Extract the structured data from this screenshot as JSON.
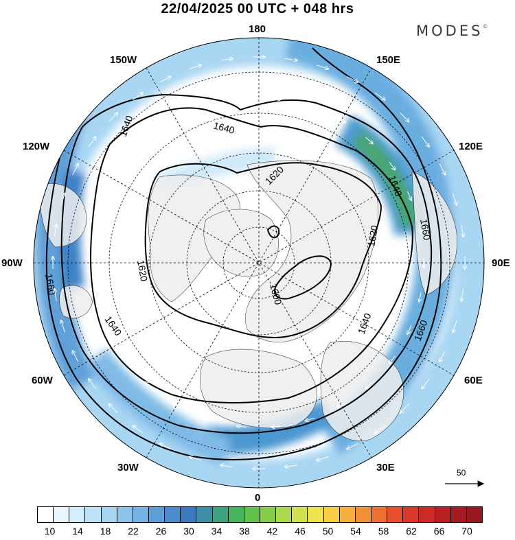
{
  "title": "22/04/2025  00 UTC  + 048 hrs",
  "brand": "MODES",
  "brand_mark": "©",
  "map": {
    "projection": "north-polar-stereographic",
    "longitude_labels": [
      "180",
      "150E",
      "120E",
      "90E",
      "60E",
      "30E",
      "0",
      "30W",
      "60W",
      "90W",
      "120W",
      "150W"
    ],
    "contour_labels": [
      "1640",
      "1640",
      "1620",
      "1640",
      "1660",
      "1620",
      "1600",
      "1620",
      "1640",
      "1660",
      "1620",
      "1640",
      "1660"
    ],
    "wind_reference": {
      "value": "50"
    },
    "colors": {
      "land_shade": "#eeeeee",
      "graticule": "#000000",
      "contour": "#000000",
      "arrow": "#ffffff"
    }
  },
  "colorbar": {
    "tick_labels": [
      "10",
      "14",
      "18",
      "22",
      "26",
      "30",
      "34",
      "38",
      "42",
      "46",
      "50",
      "54",
      "58",
      "62",
      "66",
      "70"
    ],
    "colors": [
      "#ffffff",
      "#eaf6fd",
      "#d4eefb",
      "#bde3f7",
      "#a5d5f2",
      "#8cc4ec",
      "#72b2e4",
      "#5d9fd9",
      "#4b8bce",
      "#3b7abf",
      "#3d8fa7",
      "#3ea37f",
      "#45b65c",
      "#5fc24b",
      "#86cd49",
      "#abd84c",
      "#cfe14f",
      "#f0e44e",
      "#f6cd45",
      "#f5b03d",
      "#f29138",
      "#ee7033",
      "#e6502e",
      "#dc3829",
      "#cb2a26",
      "#b82024",
      "#a61b22",
      "#961820"
    ]
  }
}
